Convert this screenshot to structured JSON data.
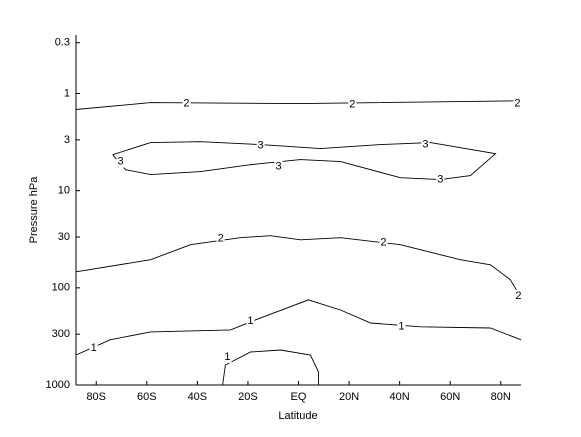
{
  "chart_data": {
    "type": "contour",
    "xlabel": "Latitude",
    "ylabel": "Pressure hPa",
    "xlim": [
      -88,
      88
    ],
    "ylim": [
      1000,
      0.25
    ],
    "ylog": true,
    "color": "#000000",
    "xticks": [
      {
        "value": -80,
        "label": "80S"
      },
      {
        "value": -60,
        "label": "60S"
      },
      {
        "value": -40,
        "label": "40S"
      },
      {
        "value": -20,
        "label": "20S"
      },
      {
        "value": 0,
        "label": "EQ"
      },
      {
        "value": 20,
        "label": "20N"
      },
      {
        "value": 40,
        "label": "40N"
      },
      {
        "value": 60,
        "label": "60N"
      },
      {
        "value": 80,
        "label": "80N"
      }
    ],
    "yticks": [
      0.3,
      1,
      3,
      10,
      30,
      100,
      300,
      1000
    ],
    "contours": [
      {
        "x": [
          -88,
          -58.5,
          1,
          88
        ],
        "y": [
          1.46,
          1.24,
          1.27,
          1.19
        ],
        "labels": [
          {
            "value": 2,
            "x": -44.3,
            "y": 1.27
          },
          {
            "value": 2,
            "x": 21.3,
            "y": 1.3
          },
          {
            "value": 2,
            "x": 86.6,
            "y": 1.27
          }
        ]
      },
      {
        "x": [
          -73.5,
          -58.5,
          -38.7,
          -15,
          8.7,
          32.4,
          52.2,
          77.9,
          68,
          56.1,
          40.3,
          16.6,
          0.8,
          -19,
          -38.7,
          -58.5,
          -68.4,
          -73.5
        ],
        "y": [
          4.26,
          3.2,
          3.13,
          3.36,
          3.69,
          3.36,
          3.2,
          4.16,
          7.0,
          7.7,
          7.35,
          5.02,
          4.79,
          5.4,
          6.37,
          6.84,
          6.08,
          4.26
        ],
        "labels": [
          {
            "value": 3,
            "x": -15,
            "y": 3.44
          },
          {
            "value": 3,
            "x": 50.2,
            "y": 3.36
          },
          {
            "value": 3,
            "x": -70.4,
            "y": 5.02
          },
          {
            "value": 3,
            "x": -7.9,
            "y": 5.66
          },
          {
            "value": 3,
            "x": 56.1,
            "y": 7.7
          }
        ]
      },
      {
        "x": [
          -88,
          -58.5,
          -42.7,
          -23,
          -11.1,
          0.8,
          16.6,
          40.3,
          64,
          75.9,
          83.8,
          88
        ],
        "y": [
          68.4,
          51.4,
          36.0,
          30.5,
          29.1,
          32.0,
          30.5,
          36.0,
          51.4,
          57.9,
          82.7,
          126.8
        ],
        "labels": [
          {
            "value": 2,
            "x": -30.8,
            "y": 31.3
          },
          {
            "value": 2,
            "x": 33.6,
            "y": 34.4
          },
          {
            "value": 2,
            "x": 87,
            "y": 121
          }
        ]
      },
      {
        "x": [
          -88,
          -74.5,
          -58.5,
          -26.9,
          -15,
          3.9,
          16.6,
          28.5,
          48.2,
          75.9,
          88
        ],
        "y": [
          491,
          343,
          284,
          271,
          204,
          133,
          169,
          230,
          252,
          259,
          343
        ],
        "labels": [
          {
            "value": 1,
            "x": -81,
            "y": 416
          },
          {
            "value": 1,
            "x": -19,
            "y": 219
          },
          {
            "value": 1,
            "x": 40.7,
            "y": 252
          }
        ]
      },
      {
        "x": [
          -30,
          -28.9,
          -19,
          -7.1,
          4.7,
          7.9,
          7.9
        ],
        "y": [
          1000,
          622,
          457,
          436,
          491,
          734,
          1000
        ],
        "labels": [
          {
            "value": 1,
            "x": -28.1,
            "y": 514
          }
        ]
      }
    ]
  }
}
